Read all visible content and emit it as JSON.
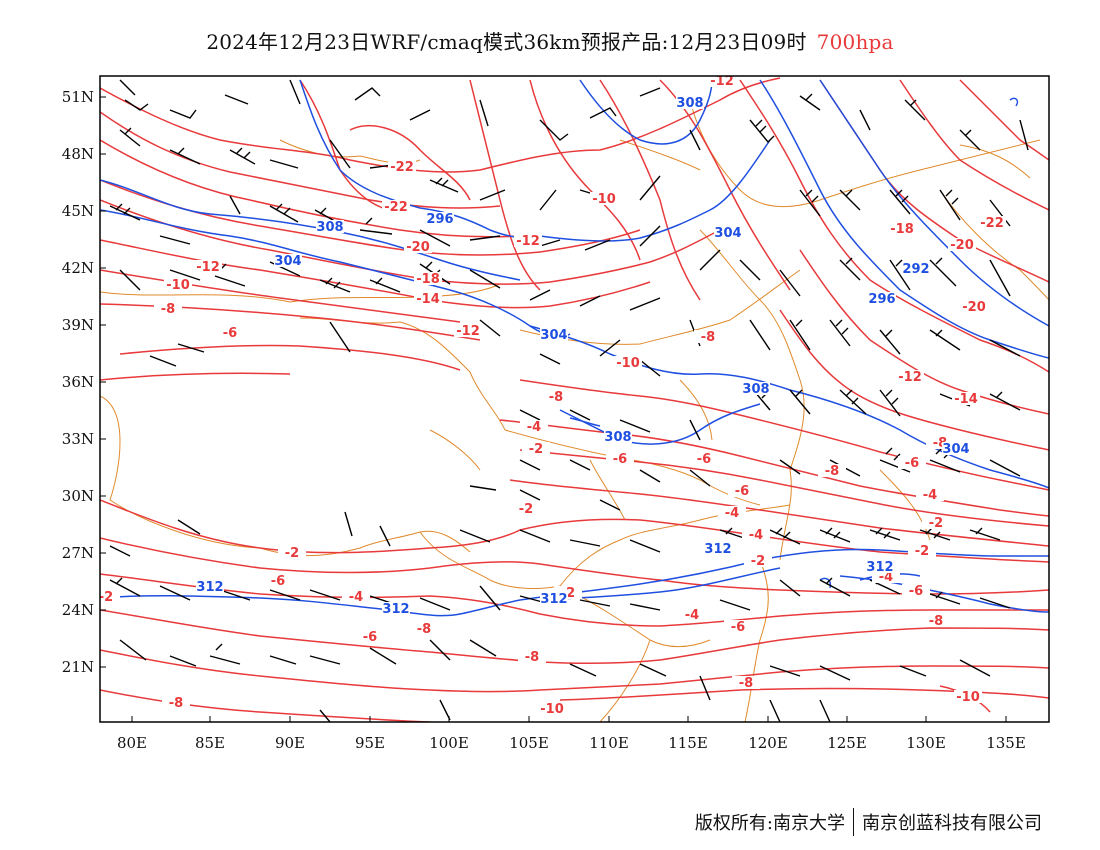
{
  "title": {
    "main": "2024年12月23日WRF/cmaq模式36km预报产品:12月23日09时",
    "level": "700hpa"
  },
  "footer": {
    "copyright": "版权所有:南京大学",
    "company": "南京创蓝科技有限公司"
  },
  "colors": {
    "temperature": "#e8393b",
    "geopotential": "#1f4fe0",
    "border": "#e08a2c",
    "wind": "#000000"
  },
  "axes": {
    "lon_labels": [
      "80E",
      "85E",
      "90E",
      "95E",
      "100E",
      "105E",
      "110E",
      "115E",
      "120E",
      "125E",
      "130E",
      "135E"
    ],
    "lat_labels": [
      "51N",
      "48N",
      "45N",
      "42N",
      "39N",
      "36N",
      "33N",
      "30N",
      "27N",
      "24N",
      "21N"
    ]
  },
  "contour_labels": {
    "temperature": [
      "-12",
      "-22",
      "-22",
      "-20",
      "-18",
      "-14",
      "-12",
      "-10",
      "-10",
      "-12",
      "-8",
      "-6",
      "-12",
      "-10",
      "-8",
      "-8",
      "-4",
      "-2",
      "-6",
      "-6",
      "-4",
      "-2",
      "-2",
      "-2",
      "-4",
      "-6",
      "-8",
      "-6",
      "-8",
      "-10",
      "-8",
      "-18",
      "-20",
      "-22",
      "-20",
      "-12",
      "-14",
      "-8",
      "-6",
      "-4",
      "-2",
      "-2",
      "-4",
      "-6",
      "-8",
      "-10",
      "-2",
      "-4",
      "-2",
      "-4",
      "-6",
      "-8",
      "-6",
      "-8"
    ],
    "geopotential": [
      "308",
      "296",
      "308",
      "304",
      "304",
      "304",
      "308",
      "308",
      "312",
      "312",
      "312",
      "312",
      "312",
      "292",
      "296",
      "304"
    ]
  }
}
